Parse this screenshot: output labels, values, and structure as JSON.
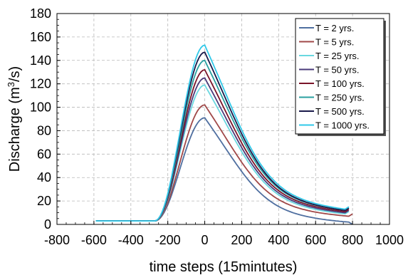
{
  "chart_data": {
    "type": "line",
    "title": "",
    "xlabel": "time steps (15mintutes)",
    "ylabel_parts": [
      "Discharge (m",
      "3",
      "/s)"
    ],
    "xlim": [
      -800,
      1000
    ],
    "ylim": [
      0,
      180
    ],
    "x_ticks": [
      -800,
      -600,
      -400,
      -200,
      0,
      200,
      400,
      600,
      800,
      1000
    ],
    "y_ticks": [
      0,
      20,
      40,
      60,
      80,
      100,
      120,
      140,
      160,
      180
    ],
    "grid": true,
    "legend_position": "top-right",
    "baseline": {
      "x_start": -590,
      "x_end": -270,
      "value": 3
    },
    "series": [
      {
        "name": "T = 2 yrs.",
        "color": "#4f6fa0",
        "peak": 91,
        "end": [
          800,
          0
        ]
      },
      {
        "name": "T = 5 yrs.",
        "color": "#a04848",
        "peak": 102,
        "end": [
          800,
          9
        ]
      },
      {
        "name": "T  = 25 yrs.",
        "color": "#6ad8e0",
        "peak": 119,
        "end": [
          780,
          11
        ]
      },
      {
        "name": "T  = 50 yrs.",
        "color": "#4a3a7a",
        "peak": 125,
        "end": [
          780,
          12
        ]
      },
      {
        "name": "T = 100 yrs.",
        "color": "#7a1428",
        "peak": 132,
        "end": [
          780,
          13
        ]
      },
      {
        "name": "T = 250 yrs.",
        "color": "#2aa0a0",
        "peak": 140,
        "end": [
          780,
          14
        ]
      },
      {
        "name": "T = 500 yrs.",
        "color": "#1a1a4a",
        "peak": 147,
        "end": [
          780,
          14
        ]
      },
      {
        "name": "T = 1000 yrs.",
        "color": "#30c8e8",
        "peak": 153,
        "end": [
          780,
          15
        ]
      }
    ]
  }
}
